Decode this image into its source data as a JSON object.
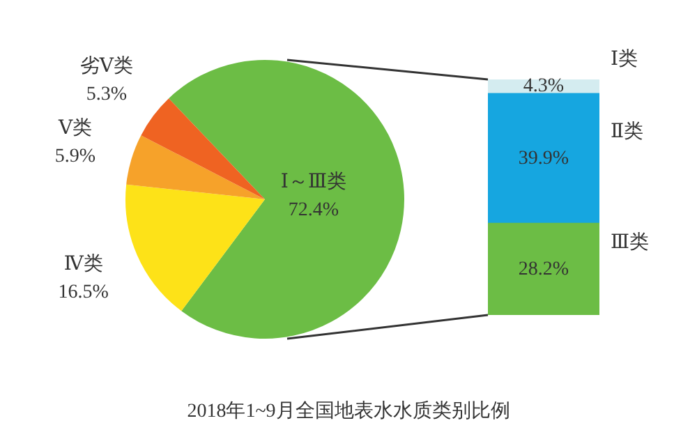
{
  "chart_data": [
    {
      "type": "pie",
      "title": "2018年1~9月全国地表水水质类别比例",
      "categories": [
        "Ⅰ～Ⅲ类",
        "Ⅳ类",
        "Ⅴ类",
        "劣Ⅴ类"
      ],
      "values": [
        72.4,
        16.5,
        5.9,
        5.3
      ],
      "colors": [
        "#6cbd45",
        "#fde218",
        "#f6a22a",
        "#ef6322"
      ],
      "value_labels": [
        "72.4%",
        "16.5%",
        "5.9%",
        "5.3%"
      ],
      "legend": false
    },
    {
      "type": "bar",
      "stacked": true,
      "categories": [
        null
      ],
      "legend": false,
      "series": [
        {
          "name": "Ⅲ类",
          "color": "#6cbd45",
          "values": [
            28.2
          ],
          "value_labels": [
            "28.2%"
          ]
        },
        {
          "name": "Ⅱ类",
          "color": "#16a6e0",
          "values": [
            39.9
          ],
          "value_labels": [
            "39.9%"
          ]
        },
        {
          "name": "Ⅰ类",
          "color": "#d4ecf0",
          "values": [
            4.3
          ],
          "value_labels": [
            "4.3%"
          ]
        }
      ]
    }
  ]
}
